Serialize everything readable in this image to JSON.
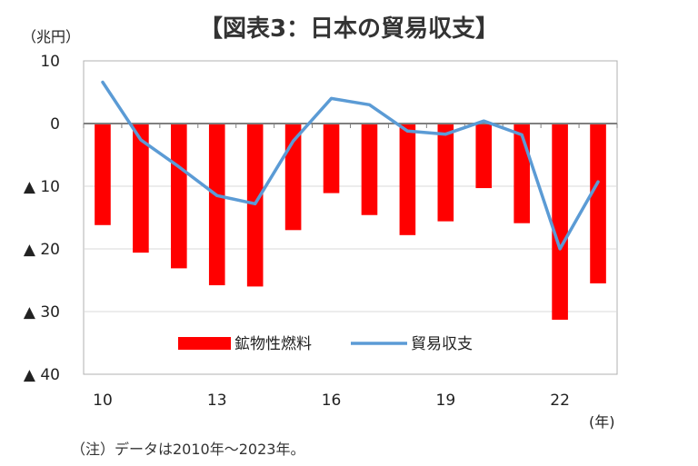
{
  "chart_data": {
    "type": "bar+line",
    "title": "【図表3：日本の貿易収支】",
    "y_unit": "（兆円）",
    "x_unit": "(年)",
    "note": "（注）データは2010年～2023年。",
    "ylim": [
      -40,
      10
    ],
    "y_ticks": [
      10,
      0,
      -10,
      -20,
      -30,
      -40
    ],
    "y_tick_labels": [
      "10",
      "0",
      "▲ 10",
      "▲ 20",
      "▲ 30",
      "▲ 40"
    ],
    "x": [
      2010,
      2011,
      2012,
      2013,
      2014,
      2015,
      2016,
      2017,
      2018,
      2019,
      2020,
      2021,
      2022,
      2023
    ],
    "x_tick_labels": [
      {
        "year": 2010,
        "label": "10"
      },
      {
        "year": 2013,
        "label": "13"
      },
      {
        "year": 2016,
        "label": "16"
      },
      {
        "year": 2019,
        "label": "19"
      },
      {
        "year": 2022,
        "label": "22"
      }
    ],
    "series": [
      {
        "name": "鉱物性燃料",
        "kind": "bar",
        "color": "#ff0000",
        "values": [
          -16.2,
          -20.6,
          -23.1,
          -25.8,
          -26.0,
          -17.0,
          -11.1,
          -14.6,
          -17.8,
          -15.6,
          -10.3,
          -15.9,
          -31.3,
          -25.5
        ]
      },
      {
        "name": "貿易収支",
        "kind": "line",
        "color": "#5b9bd5",
        "values": [
          6.6,
          -2.6,
          -6.9,
          -11.5,
          -12.8,
          -2.8,
          4.0,
          3.0,
          -1.2,
          -1.7,
          0.4,
          -1.8,
          -20.0,
          -9.3
        ]
      }
    ],
    "legend": "inside-bottom",
    "grid": true
  }
}
